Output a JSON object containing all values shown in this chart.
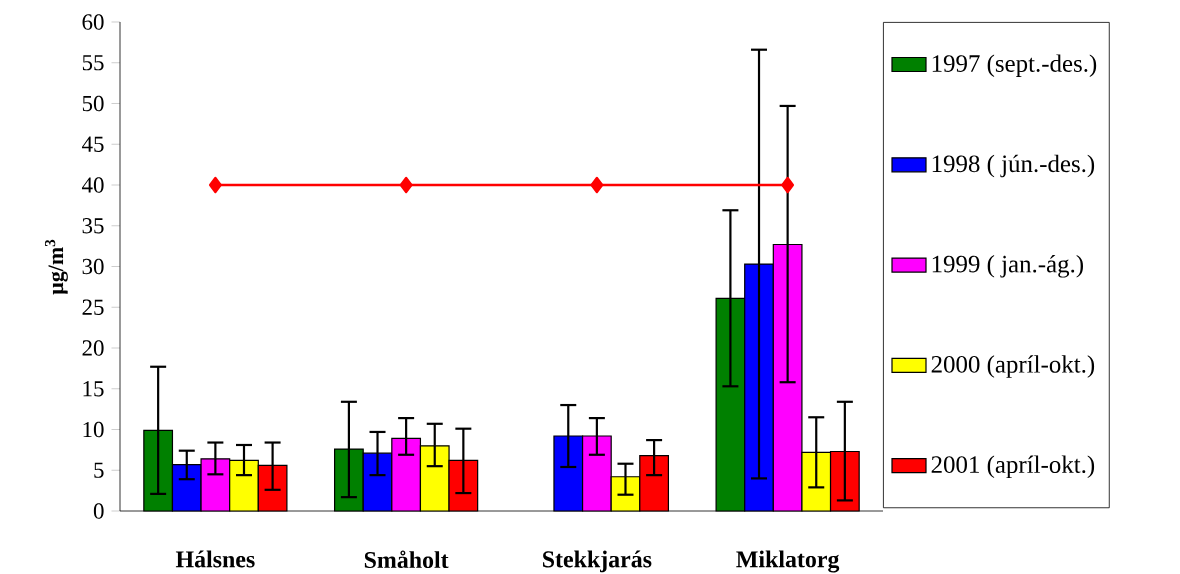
{
  "chart_data": {
    "type": "bar",
    "ylabel": "µg/m$^{3}$",
    "categories": [
      "Hálsnes",
      "Småholt",
      "Stekkjarás",
      "Miklatorg"
    ],
    "series": [
      {
        "name": "1997 (sept.-des.)",
        "color": "#008000",
        "values": [
          9.9,
          7.6,
          null,
          26.1
        ],
        "errors": [
          [
            2.1,
            17.7
          ],
          [
            1.7,
            13.4
          ],
          null,
          [
            15.3,
            36.9
          ]
        ]
      },
      {
        "name": "1998 ( jún.-des.)",
        "color": "#0000ff",
        "values": [
          5.7,
          7.1,
          9.2,
          30.3
        ],
        "errors": [
          [
            3.9,
            7.4
          ],
          [
            4.4,
            9.7
          ],
          [
            5.4,
            13.0
          ],
          [
            4.0,
            56.6
          ]
        ]
      },
      {
        "name": "1999 ( jan.-ág.)",
        "color": "#ff00ff",
        "values": [
          6.4,
          8.9,
          9.2,
          32.7
        ],
        "errors": [
          [
            4.5,
            8.4
          ],
          [
            6.9,
            11.4
          ],
          [
            6.9,
            11.4
          ],
          [
            15.8,
            49.7
          ]
        ]
      },
      {
        "name": "2000 (apríl-okt.)",
        "color": "#ffff00",
        "values": [
          6.2,
          8.0,
          4.2,
          7.2
        ],
        "errors": [
          [
            4.4,
            8.1
          ],
          [
            5.5,
            10.7
          ],
          [
            2.0,
            5.8
          ],
          [
            2.9,
            11.5
          ]
        ]
      },
      {
        "name": "2001 (apríl-okt.)",
        "color": "#ff0000",
        "values": [
          5.6,
          6.2,
          6.8,
          7.3
        ],
        "errors": [
          [
            2.6,
            8.4
          ],
          [
            2.2,
            10.1
          ],
          [
            4.4,
            8.7
          ],
          [
            1.3,
            13.4
          ]
        ]
      },
      {
        "type": "line",
        "color": "#ff0000",
        "marker": "diamond",
        "values": [
          40,
          40,
          40,
          40
        ]
      }
    ],
    "ylim": [
      0,
      60
    ],
    "yticks": [
      0,
      5,
      10,
      15,
      20,
      25,
      30,
      35,
      40,
      45,
      50,
      55,
      60
    ],
    "legend": "right"
  }
}
